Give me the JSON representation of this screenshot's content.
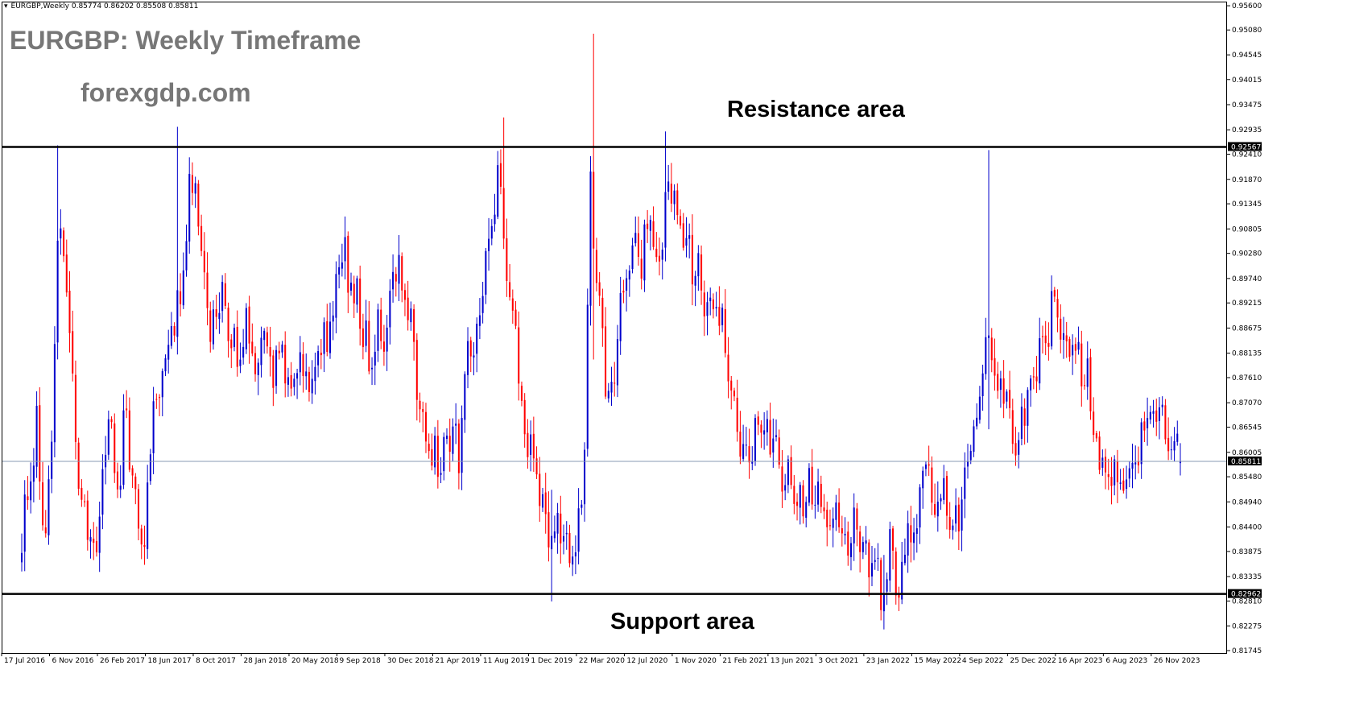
{
  "header": {
    "symbol_timeframe": "EURGBP,Weekly",
    "ohlc": "0.85774 0.86202 0.85508 0.85811"
  },
  "annotations": {
    "title": "EURGBP: Weekly Timeframe",
    "website": "forexgdp.com",
    "resistance_label": "Resistance area",
    "support_label": "Support area"
  },
  "colors": {
    "bull": "#0000cc",
    "bear": "#ff0000",
    "level_line": "#000000",
    "current_price_line": "#8a9bb3",
    "annotation_gray": "#777777"
  },
  "chart_data": {
    "type": "candlestick",
    "symbol": "EURGBP",
    "timeframe": "Weekly",
    "ylim": [
      0.81745,
      0.9562
    ],
    "y_ticks": [
      "0.95600",
      "0.95080",
      "0.94545",
      "0.94015",
      "0.93475",
      "0.92935",
      "0.92410",
      "0.91870",
      "0.91345",
      "0.90805",
      "0.90280",
      "0.89740",
      "0.89215",
      "0.88675",
      "0.88135",
      "0.87610",
      "0.87070",
      "0.86545",
      "0.86005",
      "0.85480",
      "0.84940",
      "0.84400",
      "0.83875",
      "0.83335",
      "0.82810",
      "0.82275",
      "0.81745"
    ],
    "x_ticks": [
      "17 Jul 2016",
      "6 Nov 2016",
      "26 Feb 2017",
      "18 Jun 2017",
      "8 Oct 2017",
      "28 Jan 2018",
      "20 May 2018",
      "9 Sep 2018",
      "30 Dec 2018",
      "21 Apr 2019",
      "11 Aug 2019",
      "1 Dec 2019",
      "22 Mar 2020",
      "12 Jul 2020",
      "1 Nov 2020",
      "21 Feb 2021",
      "13 Jun 2021",
      "3 Oct 2021",
      "23 Jan 2022",
      "15 May 2022",
      "4 Sep 2022",
      "25 Dec 2022",
      "16 Apr 2023",
      "6 Aug 2023",
      "26 Nov 2023"
    ],
    "levels": [
      {
        "name": "Resistance area",
        "value": 0.92567,
        "label": "0.92567"
      },
      {
        "name": "Support area",
        "value": 0.82962,
        "label": "0.82962"
      }
    ],
    "current_price": {
      "value": 0.85811,
      "label": "0.85811"
    },
    "last_bar": {
      "open": 0.85774,
      "high": 0.86202,
      "low": 0.85508,
      "close": 0.85811
    },
    "close_path": [
      [
        "17 Jul 2016",
        0.84
      ],
      [
        "31 Jul 2016",
        0.85
      ],
      [
        "21 Aug 2016",
        0.865
      ],
      [
        "11 Sep 2016",
        0.84
      ],
      [
        "25 Sep 2016",
        0.86
      ],
      [
        "9 Oct 2016",
        0.9
      ],
      [
        "16 Oct 2016",
        0.905
      ],
      [
        "30 Oct 2016",
        0.895
      ],
      [
        "6 Nov 2016",
        0.885
      ],
      [
        "27 Nov 2016",
        0.855
      ],
      [
        "18 Dec 2016",
        0.845
      ],
      [
        "1 Jan 2017",
        0.838
      ],
      [
        "22 Jan 2017",
        0.856
      ],
      [
        "5 Feb 2017",
        0.87
      ],
      [
        "26 Feb 2017",
        0.85
      ],
      [
        "19 Mar 2017",
        0.87
      ],
      [
        "9 Apr 2017",
        0.848
      ],
      [
        "30 Apr 2017",
        0.842
      ],
      [
        "21 May 2017",
        0.868
      ],
      [
        "11 Jun 2017",
        0.878
      ],
      [
        "2 Jul 2017",
        0.885
      ],
      [
        "23 Jul 2017",
        0.892
      ],
      [
        "13 Aug 2017",
        0.915
      ],
      [
        "27 Aug 2017",
        0.92
      ],
      [
        "10 Sep 2017",
        0.9
      ],
      [
        "1 Oct 2017",
        0.885
      ],
      [
        "22 Oct 2017",
        0.895
      ],
      [
        "12 Nov 2017",
        0.885
      ],
      [
        "3 Dec 2017",
        0.88
      ],
      [
        "24 Dec 2017",
        0.89
      ],
      [
        "14 Jan 2018",
        0.88
      ],
      [
        "4 Feb 2018",
        0.885
      ],
      [
        "25 Feb 2018",
        0.875
      ],
      [
        "18 Mar 2018",
        0.885
      ],
      [
        "8 Apr 2018",
        0.87
      ],
      [
        "29 Apr 2018",
        0.88
      ],
      [
        "20 May 2018",
        0.875
      ],
      [
        "10 Jun 2018",
        0.88
      ],
      [
        "1 Jul 2018",
        0.885
      ],
      [
        "22 Jul 2018",
        0.895
      ],
      [
        "5 Aug 2018",
        0.905
      ],
      [
        "26 Aug 2018",
        0.895
      ],
      [
        "16 Sep 2018",
        0.89
      ],
      [
        "7 Oct 2018",
        0.88
      ],
      [
        "28 Oct 2018",
        0.885
      ],
      [
        "18 Nov 2018",
        0.885
      ],
      [
        "9 Dec 2018",
        0.9
      ],
      [
        "30 Dec 2018",
        0.895
      ],
      [
        "20 Jan 2019",
        0.88
      ],
      [
        "10 Feb 2019",
        0.868
      ],
      [
        "3 Mar 2019",
        0.86
      ],
      [
        "24 Mar 2019",
        0.855
      ],
      [
        "14 Apr 2019",
        0.865
      ],
      [
        "5 May 2019",
        0.86
      ],
      [
        "19 May 2019",
        0.875
      ],
      [
        "9 Jun 2019",
        0.885
      ],
      [
        "30 Jun 2019",
        0.895
      ],
      [
        "21 Jul 2019",
        0.91
      ],
      [
        "4 Aug 2019",
        0.925
      ],
      [
        "25 Aug 2019",
        0.9
      ],
      [
        "15 Sep 2019",
        0.885
      ],
      [
        "6 Oct 2019",
        0.865
      ],
      [
        "27 Oct 2019",
        0.86
      ],
      [
        "17 Nov 2019",
        0.85
      ],
      [
        "8 Dec 2019",
        0.843
      ],
      [
        "29 Dec 2019",
        0.845
      ],
      [
        "19 Jan 2020",
        0.84
      ],
      [
        "2 Feb 2020",
        0.842
      ],
      [
        "23 Feb 2020",
        0.86
      ],
      [
        "8 Mar 2020",
        0.915
      ],
      [
        "22 Mar 2020",
        0.9
      ],
      [
        "12 Apr 2020",
        0.875
      ],
      [
        "3 May 2020",
        0.878
      ],
      [
        "24 May 2020",
        0.895
      ],
      [
        "14 Jun 2020",
        0.905
      ],
      [
        "5 Jul 2020",
        0.9
      ],
      [
        "26 Jul 2020",
        0.91
      ],
      [
        "16 Aug 2020",
        0.9
      ],
      [
        "6 Sep 2020",
        0.92
      ],
      [
        "27 Sep 2020",
        0.91
      ],
      [
        "18 Oct 2020",
        0.905
      ],
      [
        "8 Nov 2020",
        0.9
      ],
      [
        "29 Nov 2020",
        0.895
      ],
      [
        "20 Dec 2020",
        0.89
      ],
      [
        "10 Jan 2021",
        0.89
      ],
      [
        "31 Jan 2021",
        0.875
      ],
      [
        "21 Feb 2021",
        0.86
      ],
      [
        "14 Mar 2021",
        0.858
      ],
      [
        "4 Apr 2021",
        0.865
      ],
      [
        "25 Apr 2021",
        0.868
      ],
      [
        "16 May 2021",
        0.86
      ],
      [
        "6 Jun 2021",
        0.855
      ],
      [
        "27 Jun 2021",
        0.852
      ],
      [
        "18 Jul 2021",
        0.85
      ],
      [
        "8 Aug 2021",
        0.852
      ],
      [
        "29 Aug 2021",
        0.85
      ],
      [
        "19 Sep 2021",
        0.845
      ],
      [
        "10 Oct 2021",
        0.848
      ],
      [
        "31 Oct 2021",
        0.84
      ],
      [
        "21 Nov 2021",
        0.845
      ],
      [
        "12 Dec 2021",
        0.838
      ],
      [
        "2 Jan 2022",
        0.833
      ],
      [
        "23 Jan 2022",
        0.83
      ],
      [
        "6 Feb 2022",
        0.84
      ],
      [
        "27 Feb 2022",
        0.83
      ],
      [
        "20 Mar 2022",
        0.84
      ],
      [
        "10 Apr 2022",
        0.848
      ],
      [
        "1 May 2022",
        0.855
      ],
      [
        "22 May 2022",
        0.85
      ],
      [
        "12 Jun 2022",
        0.855
      ],
      [
        "3 Jul 2022",
        0.845
      ],
      [
        "24 Jul 2022",
        0.85
      ],
      [
        "14 Aug 2022",
        0.86
      ],
      [
        "4 Sep 2022",
        0.87
      ],
      [
        "25 Sep 2022",
        0.885
      ],
      [
        "16 Oct 2022",
        0.875
      ],
      [
        "6 Nov 2022",
        0.87
      ],
      [
        "27 Nov 2022",
        0.86
      ],
      [
        "18 Dec 2022",
        0.87
      ],
      [
        "8 Jan 2023",
        0.88
      ],
      [
        "29 Jan 2023",
        0.885
      ],
      [
        "19 Feb 2023",
        0.89
      ],
      [
        "12 Mar 2023",
        0.885
      ],
      [
        "2 Apr 2023",
        0.88
      ],
      [
        "23 Apr 2023",
        0.882
      ],
      [
        "14 May 2023",
        0.875
      ],
      [
        "4 Jun 2023",
        0.86
      ],
      [
        "25 Jun 2023",
        0.855
      ],
      [
        "16 Jul 2023",
        0.858
      ],
      [
        "6 Aug 2023",
        0.855
      ],
      [
        "27 Aug 2023",
        0.858
      ],
      [
        "17 Sep 2023",
        0.865
      ],
      [
        "8 Oct 2023",
        0.868
      ],
      [
        "29 Oct 2023",
        0.87
      ],
      [
        "19 Nov 2023",
        0.858
      ],
      [
        "3 Dec 2023",
        0.86
      ],
      [
        "17 Dec 2023",
        0.8581
      ]
    ],
    "extreme_wicks": [
      {
        "date": "9 Oct 2016",
        "high": 0.926,
        "low": 0.899
      },
      {
        "date": "16 Jul 2017",
        "high": 0.93,
        "low": 0.9
      },
      {
        "date": "18 Aug 2019",
        "high": 0.932,
        "low": 0.91
      },
      {
        "date": "8 Dec 2019",
        "high": 0.852,
        "low": 0.828
      },
      {
        "date": "15 Mar 2020",
        "high": 0.95,
        "low": 0.88
      },
      {
        "date": "30 Aug 2020",
        "high": 0.929,
        "low": 0.91
      },
      {
        "date": "23 Jan 2022",
        "high": 0.838,
        "low": 0.822
      },
      {
        "date": "25 Sep 2022",
        "high": 0.925,
        "low": 0.865
      }
    ]
  }
}
